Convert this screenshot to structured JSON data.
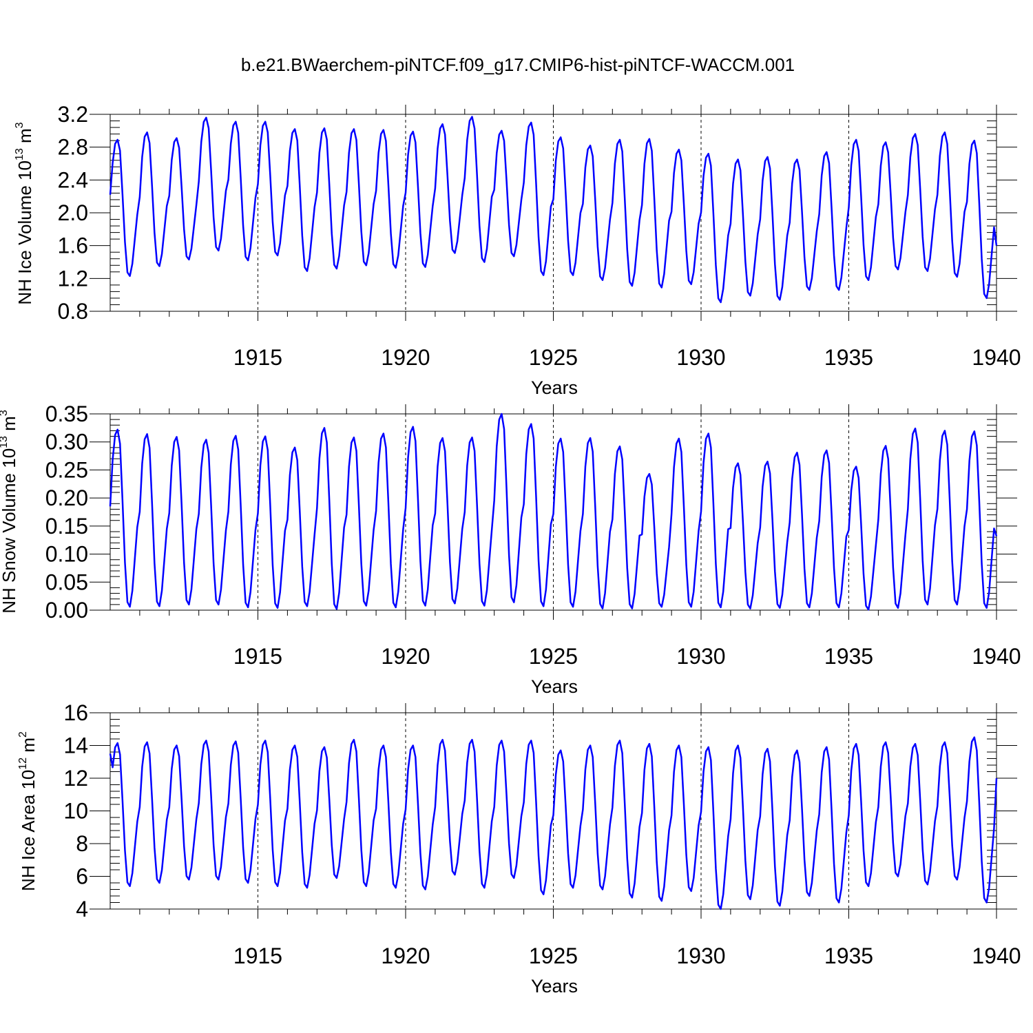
{
  "title": "b.e21.BWaerchem-piNTCF.f09_g17.CMIP6-hist-piNTCF-WACCM.001",
  "colors": {
    "line": "#0000ff",
    "axis": "#000000"
  },
  "chart_data": [
    {
      "type": "line",
      "name": "ice-volume",
      "title": "b.e21.BWaerchem-piNTCF.f09_g17.CMIP6-hist-piNTCF-WACCM.001",
      "xlabel": "Years",
      "ylabel": {
        "main": "NH Ice Volume 10",
        "exp": "13",
        "unit": " m",
        "unit_exp": "3"
      },
      "xlim": [
        1910,
        1940
      ],
      "ylim": [
        0.8,
        3.2
      ],
      "xticks": [
        1915,
        1920,
        1925,
        1930,
        1935,
        1940
      ],
      "yticks": [
        0.8,
        1.2,
        1.6,
        2.0,
        2.4,
        2.8,
        3.2
      ],
      "yticklabels": [
        "0.8",
        "1.2",
        "1.6",
        "2.0",
        "2.4",
        "2.8",
        "3.2"
      ],
      "series": [
        {
          "name": "NH Ice Volume",
          "annual_max": [
            2.89,
            2.98,
            2.91,
            3.16,
            3.11,
            3.11,
            3.02,
            3.03,
            3.02,
            3.01,
            2.99,
            3.08,
            3.17,
            3.0,
            3.1,
            2.92,
            2.82,
            2.89,
            2.9,
            2.77,
            2.72,
            2.65,
            2.68,
            2.65,
            2.74,
            2.89,
            2.86,
            2.96,
            2.98,
            2.88
          ],
          "annual_min": [
            1.23,
            1.35,
            1.43,
            1.54,
            1.42,
            1.48,
            1.29,
            1.32,
            1.36,
            1.33,
            1.34,
            1.51,
            1.4,
            1.47,
            1.24,
            1.24,
            1.18,
            1.11,
            1.09,
            1.13,
            0.91,
            0.99,
            0.94,
            1.06,
            1.06,
            1.18,
            1.31,
            1.29,
            1.22,
            0.96
          ],
          "start_value": 2.22,
          "end_value": 1.6
        }
      ]
    },
    {
      "type": "line",
      "name": "snow-volume",
      "title": "",
      "xlabel": "Years",
      "ylabel": {
        "main": "NH Snow Volume 10",
        "exp": "13",
        "unit": " m",
        "unit_exp": "3"
      },
      "xlim": [
        1910,
        1940
      ],
      "ylim": [
        0.0,
        0.35
      ],
      "xticks": [
        1915,
        1920,
        1925,
        1930,
        1935,
        1940
      ],
      "yticks": [
        0.0,
        0.05,
        0.1,
        0.15,
        0.2,
        0.25,
        0.3,
        0.35
      ],
      "yticklabels": [
        "0.00",
        "0.05",
        "0.10",
        "0.15",
        "0.20",
        "0.25",
        "0.30",
        "0.35"
      ],
      "series": [
        {
          "name": "NH Snow Volume",
          "annual_max": [
            0.322,
            0.314,
            0.309,
            0.304,
            0.311,
            0.31,
            0.29,
            0.325,
            0.308,
            0.315,
            0.327,
            0.307,
            0.308,
            0.35,
            0.332,
            0.306,
            0.307,
            0.292,
            0.243,
            0.306,
            0.315,
            0.262,
            0.265,
            0.281,
            0.285,
            0.256,
            0.293,
            0.324,
            0.32,
            0.319
          ],
          "annual_min": [
            0.006,
            0.007,
            0.01,
            0.01,
            0.005,
            0.004,
            0.007,
            0.002,
            0.008,
            0.005,
            0.008,
            0.012,
            0.008,
            0.014,
            0.007,
            0.006,
            0.003,
            0.003,
            0.006,
            0.006,
            0.005,
            0.003,
            0.004,
            0.005,
            0.005,
            0.001,
            0.004,
            0.01,
            0.01,
            0.004
          ],
          "start_value": 0.185,
          "end_value": 0.132
        }
      ]
    },
    {
      "type": "line",
      "name": "ice-area",
      "title": "",
      "xlabel": "Years",
      "ylabel": {
        "main": "NH Ice Area 10",
        "exp": "12",
        "unit": " m",
        "unit_exp": "2"
      },
      "xlim": [
        1910,
        1940
      ],
      "ylim": [
        4,
        16
      ],
      "xticks": [
        1915,
        1920,
        1925,
        1930,
        1935,
        1940
      ],
      "yticks": [
        4,
        6,
        8,
        10,
        12,
        14,
        16
      ],
      "yticklabels": [
        "4",
        "6",
        "8",
        "10",
        "12",
        "14",
        "16"
      ],
      "series": [
        {
          "name": "NH Ice Area",
          "annual_max": [
            14.15,
            14.2,
            14.0,
            14.3,
            14.25,
            14.3,
            14.0,
            13.9,
            14.35,
            14.0,
            14.0,
            14.35,
            14.35,
            14.3,
            14.3,
            13.7,
            14.0,
            14.3,
            14.1,
            14.0,
            13.9,
            14.0,
            13.8,
            13.7,
            13.9,
            14.1,
            14.2,
            14.1,
            14.2,
            14.5
          ],
          "annual_min": [
            5.4,
            5.6,
            5.8,
            5.8,
            5.6,
            5.4,
            5.3,
            5.9,
            5.4,
            5.3,
            5.2,
            6.1,
            5.3,
            5.9,
            4.9,
            5.3,
            5.2,
            4.7,
            4.5,
            5.1,
            4.0,
            4.6,
            4.2,
            4.8,
            4.4,
            5.4,
            6.0,
            5.5,
            5.8,
            4.4
          ],
          "start_value": 13.5,
          "end_value": 12.0
        }
      ]
    }
  ],
  "panels": [
    {
      "xlabel": "Years",
      "xticklabels": [
        "1915",
        "1920",
        "1925",
        "1930",
        "1935",
        "1940"
      ],
      "yticklabels": [
        "0.8",
        "1.2",
        "1.6",
        "2.0",
        "2.4",
        "2.8",
        "3.2"
      ],
      "ylabel": {
        "main": "NH Ice Volume 10",
        "exp": "13",
        "unit": " m",
        "unit_exp": "3"
      }
    },
    {
      "xlabel": "Years",
      "xticklabels": [
        "1915",
        "1920",
        "1925",
        "1930",
        "1935",
        "1940"
      ],
      "yticklabels": [
        "0.00",
        "0.05",
        "0.10",
        "0.15",
        "0.20",
        "0.25",
        "0.30",
        "0.35"
      ],
      "ylabel": {
        "main": "NH Snow Volume 10",
        "exp": "13",
        "unit": " m",
        "unit_exp": "3"
      }
    },
    {
      "xlabel": "Years",
      "xticklabels": [
        "1915",
        "1920",
        "1925",
        "1930",
        "1935",
        "1940"
      ],
      "yticklabels": [
        "4",
        "6",
        "8",
        "10",
        "12",
        "14",
        "16"
      ],
      "ylabel": {
        "main": "NH Ice Area 10",
        "exp": "12",
        "unit": " m",
        "unit_exp": "2"
      }
    }
  ]
}
